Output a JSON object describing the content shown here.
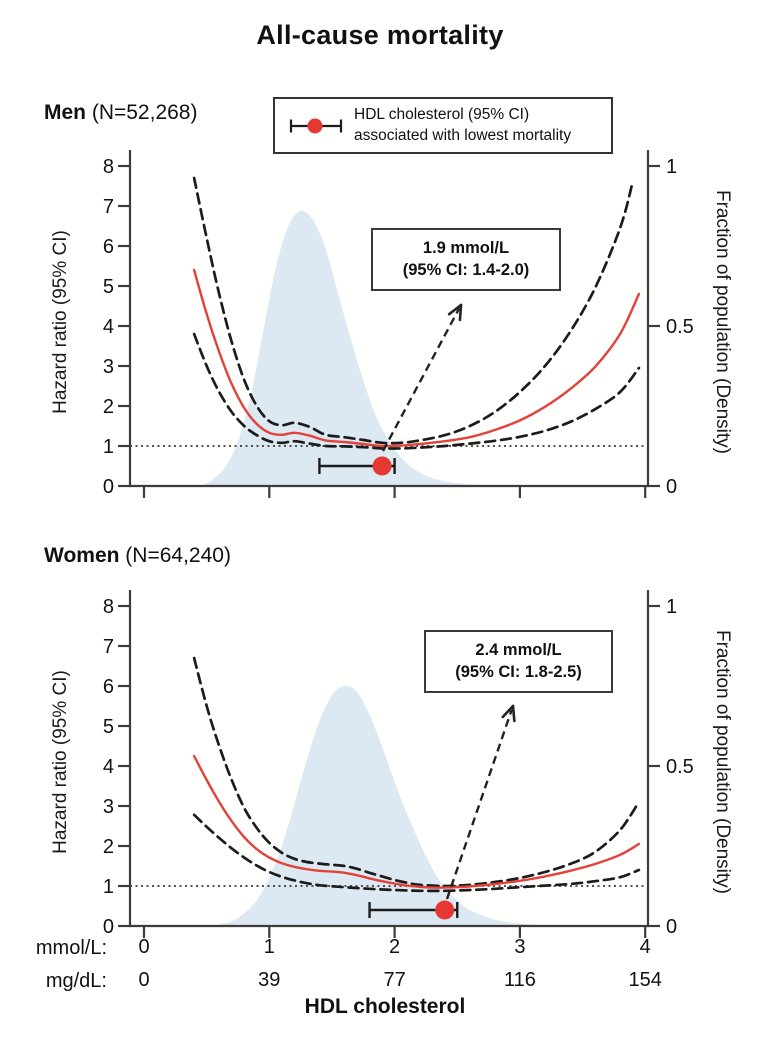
{
  "title": "All-cause mortality",
  "legend": {
    "line1": "HDL cholesterol (95% CI)",
    "line2": "associated with lowest mortality"
  },
  "x_axis": {
    "row1_label": "mmol/L:",
    "row1_values": [
      "0",
      "1",
      "2",
      "3",
      "4"
    ],
    "row2_label": "mg/dL:",
    "row2_values": [
      "0",
      "39",
      "77",
      "116",
      "154"
    ],
    "title": "HDL cholesterol"
  },
  "colors": {
    "hazard_line": "#e2423a",
    "ci_line": "#1c1c1c",
    "density_fill": "#dce8f2",
    "marker_red": "#e63832",
    "axis": "#3c3c3c",
    "text": "#111111"
  },
  "chart_data": [
    {
      "type": "line",
      "panel": "men",
      "heading_name": "Men",
      "heading_n": " (N=52,268)",
      "ylabel_left": "Hazard ratio (95% CI)",
      "ylabel_right": "Fraction of population (Density)",
      "xlim": [
        0,
        4
      ],
      "xticks": [
        0,
        1,
        2,
        3,
        4
      ],
      "ylim_left": [
        0,
        8
      ],
      "yticks_left": [
        0,
        1,
        2,
        3,
        4,
        5,
        6,
        7,
        8
      ],
      "ylim_right": [
        0,
        1
      ],
      "yticks_right": [
        0,
        0.5,
        1
      ],
      "ytick_right_labels": [
        "0",
        "0.5",
        "1"
      ],
      "reference_hr": 1,
      "annotation": {
        "line1": "1.9 mmol/L",
        "line2": "(95% CI: 1.4-2.0)"
      },
      "optimum": {
        "value_mmol": 1.9,
        "ci_low": 1.4,
        "ci_high": 2.0
      },
      "series": [
        {
          "name": "hazard_ratio",
          "style": "solid",
          "x": [
            0.4,
            0.5,
            0.6,
            0.7,
            0.8,
            0.9,
            1.0,
            1.1,
            1.2,
            1.32,
            1.45,
            1.6,
            1.75,
            1.9,
            2.05,
            2.2,
            2.4,
            2.6,
            2.8,
            3.0,
            3.2,
            3.4,
            3.6,
            3.8,
            3.95
          ],
          "y": [
            5.4,
            4.3,
            3.35,
            2.55,
            1.95,
            1.55,
            1.33,
            1.28,
            1.33,
            1.26,
            1.14,
            1.1,
            1.05,
            1.0,
            1.01,
            1.05,
            1.12,
            1.22,
            1.4,
            1.64,
            1.98,
            2.42,
            2.98,
            3.8,
            4.8
          ]
        },
        {
          "name": "upper_ci",
          "style": "dashed",
          "x": [
            0.4,
            0.5,
            0.6,
            0.7,
            0.8,
            0.9,
            1.0,
            1.1,
            1.2,
            1.32,
            1.45,
            1.6,
            1.75,
            1.9,
            2.05,
            2.2,
            2.4,
            2.6,
            2.8,
            3.0,
            3.2,
            3.4,
            3.6,
            3.8,
            3.9
          ],
          "y": [
            7.7,
            6.2,
            4.8,
            3.6,
            2.65,
            2.0,
            1.62,
            1.52,
            1.58,
            1.48,
            1.28,
            1.22,
            1.15,
            1.08,
            1.08,
            1.14,
            1.27,
            1.5,
            1.85,
            2.35,
            3.0,
            3.85,
            4.95,
            6.45,
            7.6
          ]
        },
        {
          "name": "lower_ci",
          "style": "dashed",
          "x": [
            0.4,
            0.5,
            0.6,
            0.7,
            0.8,
            0.9,
            1.0,
            1.1,
            1.2,
            1.32,
            1.45,
            1.6,
            1.75,
            1.9,
            2.05,
            2.2,
            2.4,
            2.6,
            2.8,
            3.0,
            3.2,
            3.4,
            3.6,
            3.8,
            3.95
          ],
          "y": [
            3.8,
            3.0,
            2.35,
            1.85,
            1.5,
            1.27,
            1.12,
            1.08,
            1.12,
            1.06,
            1.0,
            0.99,
            0.97,
            0.94,
            0.94,
            0.96,
            1.0,
            1.06,
            1.13,
            1.23,
            1.38,
            1.6,
            1.92,
            2.35,
            2.95
          ]
        },
        {
          "name": "density",
          "style": "area",
          "x": [
            0.45,
            0.55,
            0.65,
            0.75,
            0.85,
            0.95,
            1.05,
            1.15,
            1.25,
            1.35,
            1.45,
            1.55,
            1.65,
            1.75,
            1.85,
            1.95,
            2.05,
            2.15,
            2.25,
            2.4,
            2.6,
            2.8,
            3.0,
            3.2,
            3.4
          ],
          "y": [
            0.0,
            0.02,
            0.06,
            0.14,
            0.28,
            0.48,
            0.68,
            0.81,
            0.86,
            0.83,
            0.74,
            0.6,
            0.46,
            0.33,
            0.22,
            0.145,
            0.09,
            0.055,
            0.032,
            0.015,
            0.005,
            0.002,
            0.001,
            0.0005,
            0.0
          ]
        }
      ]
    },
    {
      "type": "line",
      "panel": "women",
      "heading_name": "Women",
      "heading_n": " (N=64,240)",
      "ylabel_left": "Hazard ratio (95% CI)",
      "ylabel_right": "Fraction of population (Density)",
      "xlim": [
        0,
        4
      ],
      "xticks": [
        0,
        1,
        2,
        3,
        4
      ],
      "ylim_left": [
        0,
        8
      ],
      "yticks_left": [
        0,
        1,
        2,
        3,
        4,
        5,
        6,
        7,
        8
      ],
      "ylim_right": [
        0,
        1
      ],
      "yticks_right": [
        0,
        0.5,
        1
      ],
      "ytick_right_labels": [
        "0",
        "0.5",
        "1"
      ],
      "reference_hr": 1,
      "annotation": {
        "line1": "2.4 mmol/L",
        "line2": "(95% CI: 1.8-2.5)"
      },
      "optimum": {
        "value_mmol": 2.4,
        "ci_low": 1.8,
        "ci_high": 2.5
      },
      "series": [
        {
          "name": "hazard_ratio",
          "style": "solid",
          "x": [
            0.4,
            0.5,
            0.6,
            0.7,
            0.8,
            0.9,
            1.0,
            1.1,
            1.2,
            1.3,
            1.4,
            1.5,
            1.6,
            1.7,
            1.8,
            1.9,
            2.0,
            2.1,
            2.2,
            2.3,
            2.4,
            2.5,
            2.6,
            2.8,
            3.0,
            3.2,
            3.4,
            3.6,
            3.8,
            3.95
          ],
          "y": [
            4.25,
            3.65,
            3.1,
            2.62,
            2.22,
            1.92,
            1.71,
            1.57,
            1.48,
            1.42,
            1.38,
            1.36,
            1.33,
            1.27,
            1.19,
            1.12,
            1.06,
            1.01,
            0.98,
            0.96,
            0.96,
            0.97,
            0.99,
            1.05,
            1.13,
            1.24,
            1.38,
            1.55,
            1.78,
            2.05
          ]
        },
        {
          "name": "upper_ci",
          "style": "dashed",
          "x": [
            0.4,
            0.5,
            0.6,
            0.7,
            0.8,
            0.9,
            1.0,
            1.1,
            1.2,
            1.3,
            1.4,
            1.5,
            1.6,
            1.7,
            1.8,
            1.9,
            2.0,
            2.1,
            2.2,
            2.4,
            2.6,
            2.8,
            3.0,
            3.2,
            3.4,
            3.6,
            3.8,
            3.95
          ],
          "y": [
            6.7,
            5.5,
            4.5,
            3.65,
            2.95,
            2.45,
            2.08,
            1.83,
            1.68,
            1.6,
            1.56,
            1.53,
            1.5,
            1.43,
            1.33,
            1.24,
            1.15,
            1.08,
            1.03,
            1.0,
            1.03,
            1.1,
            1.2,
            1.35,
            1.55,
            1.85,
            2.4,
            3.1
          ]
        },
        {
          "name": "lower_ci",
          "style": "dashed",
          "x": [
            0.4,
            0.5,
            0.6,
            0.7,
            0.8,
            0.9,
            1.0,
            1.1,
            1.2,
            1.3,
            1.4,
            1.6,
            1.8,
            2.0,
            2.2,
            2.4,
            2.6,
            2.8,
            3.0,
            3.2,
            3.4,
            3.6,
            3.8,
            3.95
          ],
          "y": [
            2.78,
            2.48,
            2.2,
            1.94,
            1.71,
            1.51,
            1.35,
            1.23,
            1.14,
            1.07,
            1.02,
            0.97,
            0.93,
            0.9,
            0.88,
            0.88,
            0.9,
            0.93,
            0.97,
            1.01,
            1.05,
            1.12,
            1.22,
            1.4
          ]
        },
        {
          "name": "density",
          "style": "area",
          "x": [
            0.6,
            0.7,
            0.8,
            0.9,
            1.0,
            1.1,
            1.2,
            1.3,
            1.4,
            1.5,
            1.6,
            1.7,
            1.8,
            1.9,
            2.0,
            2.1,
            2.2,
            2.3,
            2.4,
            2.5,
            2.6,
            2.8,
            3.0,
            3.2,
            3.4,
            3.55
          ],
          "y": [
            0.005,
            0.015,
            0.04,
            0.08,
            0.15,
            0.25,
            0.38,
            0.52,
            0.64,
            0.72,
            0.75,
            0.73,
            0.66,
            0.56,
            0.45,
            0.35,
            0.26,
            0.18,
            0.12,
            0.08,
            0.05,
            0.02,
            0.008,
            0.003,
            0.001,
            0.0
          ]
        }
      ]
    }
  ]
}
